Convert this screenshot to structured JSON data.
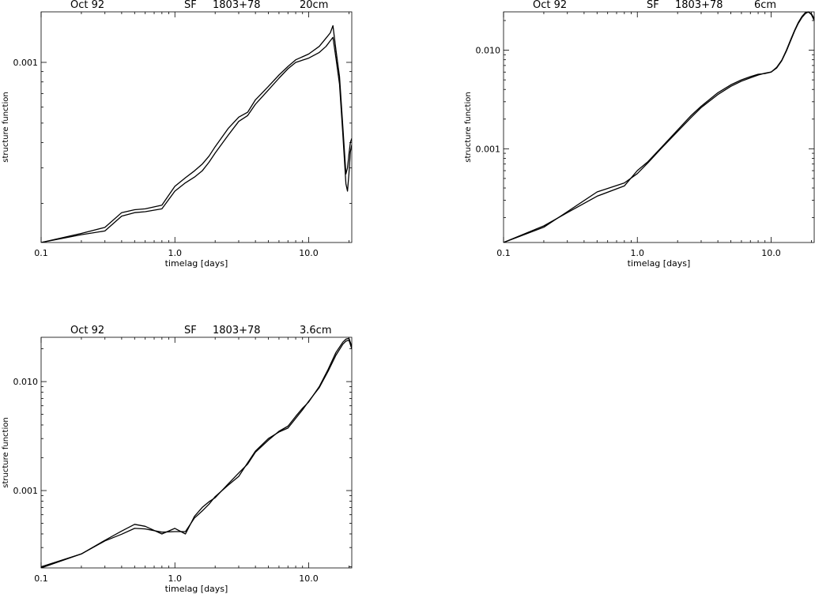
{
  "chart_data": [
    {
      "type": "line",
      "title_parts": [
        "Oct 92",
        "SF",
        "1803+78",
        "20cm"
      ],
      "xlabel": "timelag [days]",
      "ylabel": "structure function",
      "xscale": "log",
      "yscale": "log",
      "xlim": [
        0.1,
        21
      ],
      "ylim": [
        0.000128,
        0.00178
      ],
      "xticks": [
        {
          "value": 0.1,
          "label": "0.1"
        },
        {
          "value": 1.0,
          "label": "1.0"
        },
        {
          "value": 10.0,
          "label": "10.0"
        }
      ],
      "yticks": [
        {
          "value": 0.001,
          "label": "0.001"
        }
      ],
      "series": [
        {
          "x": [
            0.1,
            0.2,
            0.3,
            0.4,
            0.5,
            0.6,
            0.8,
            1.0,
            1.2,
            1.4,
            1.6,
            1.8,
            2.0,
            2.5,
            3.0,
            3.5,
            4.0,
            5.0,
            6.0,
            7.0,
            8.0,
            10.0,
            12.0,
            13.5,
            14.5,
            15.2,
            16.0,
            17.0,
            18.0,
            19.0,
            19.5,
            20.0,
            20.5,
            21.0
          ],
          "y": [
            0.000128,
            0.000142,
            0.000152,
            0.00018,
            0.000186,
            0.000188,
            0.000196,
            0.000243,
            0.000268,
            0.00029,
            0.000313,
            0.000343,
            0.000382,
            0.00047,
            0.000535,
            0.000566,
            0.000652,
            0.00076,
            0.000865,
            0.000955,
            0.00103,
            0.0011,
            0.0012,
            0.00132,
            0.0014,
            0.00152,
            0.00115,
            0.00085,
            0.00048,
            0.00028,
            0.0003,
            0.00035,
            0.0004,
            0.00042
          ]
        },
        {
          "x": [
            0.1,
            0.2,
            0.3,
            0.4,
            0.5,
            0.6,
            0.8,
            1.0,
            1.2,
            1.4,
            1.6,
            1.8,
            2.0,
            2.5,
            3.0,
            3.5,
            4.0,
            5.0,
            6.0,
            7.0,
            8.0,
            10.0,
            12.0,
            13.5,
            14.5,
            15.2,
            16.0,
            17.0,
            18.0,
            19.0,
            19.5,
            20.0,
            20.5,
            21.0
          ],
          "y": [
            0.000128,
            0.00014,
            0.000146,
            0.000173,
            0.00018,
            0.000182,
            0.000188,
            0.00023,
            0.000253,
            0.00027,
            0.00029,
            0.00032,
            0.000355,
            0.000435,
            0.00051,
            0.000545,
            0.00062,
            0.00073,
            0.000835,
            0.00093,
            0.001,
            0.00105,
            0.00112,
            0.0012,
            0.00128,
            0.00133,
            0.00105,
            0.00078,
            0.00044,
            0.00025,
            0.00023,
            0.00028,
            0.00036,
            0.00039
          ]
        }
      ]
    },
    {
      "type": "line",
      "title_parts": [
        "Oct 92",
        "SF",
        "1803+78",
        "6cm"
      ],
      "xlabel": "timelag [days]",
      "ylabel": "structure function",
      "xscale": "log",
      "yscale": "log",
      "xlim": [
        0.1,
        21
      ],
      "ylim": [
        0.000112,
        0.0245
      ],
      "xticks": [
        {
          "value": 0.1,
          "label": "0.1"
        },
        {
          "value": 1.0,
          "label": "1.0"
        },
        {
          "value": 10.0,
          "label": "10.0"
        }
      ],
      "yticks": [
        {
          "value": 0.001,
          "label": "0.001"
        },
        {
          "value": 0.01,
          "label": "0.010"
        }
      ],
      "series": [
        {
          "x": [
            0.1,
            0.2,
            0.3,
            0.5,
            0.8,
            1.0,
            1.2,
            1.5,
            2.0,
            2.5,
            3.0,
            4.0,
            5.0,
            6.0,
            7.0,
            8.0,
            9.0,
            10.0,
            11.0,
            12.0,
            13.0,
            14.0,
            15.0,
            16.0,
            17.0,
            18.0,
            19.0,
            20.0,
            21.0
          ],
          "y": [
            0.000112,
            0.000165,
            0.000225,
            0.00033,
            0.00042,
            0.0006,
            0.00074,
            0.00102,
            0.00155,
            0.00215,
            0.0027,
            0.0037,
            0.00445,
            0.005,
            0.0054,
            0.0057,
            0.0058,
            0.006,
            0.0066,
            0.0078,
            0.0098,
            0.0125,
            0.0157,
            0.0188,
            0.0215,
            0.0235,
            0.0245,
            0.023,
            0.02
          ]
        },
        {
          "x": [
            0.1,
            0.2,
            0.3,
            0.5,
            0.8,
            1.0,
            1.2,
            1.5,
            2.0,
            2.5,
            3.0,
            4.0,
            5.0,
            6.0,
            7.0,
            8.0,
            9.0,
            10.0,
            11.0,
            12.0,
            13.0,
            14.0,
            15.0,
            16.0,
            17.0,
            18.0,
            19.0,
            20.0,
            21.0
          ],
          "y": [
            0.000112,
            0.00016,
            0.00023,
            0.000365,
            0.00045,
            0.00056,
            0.00072,
            0.001,
            0.0015,
            0.00205,
            0.00262,
            0.00355,
            0.0043,
            0.00485,
            0.00525,
            0.0056,
            0.00585,
            0.006,
            0.0067,
            0.0079,
            0.01,
            0.0128,
            0.016,
            0.0192,
            0.022,
            0.024,
            0.0243,
            0.0235,
            0.021
          ]
        }
      ]
    },
    {
      "type": "line",
      "title_parts": [
        "Oct 92",
        "SF",
        "1803+78",
        "3.6cm"
      ],
      "xlabel": "timelag [days]",
      "ylabel": "structure function",
      "xscale": "log",
      "yscale": "log",
      "xlim": [
        0.1,
        21
      ],
      "ylim": [
        0.000195,
        0.0255
      ],
      "xticks": [
        {
          "value": 0.1,
          "label": "0.1"
        },
        {
          "value": 1.0,
          "label": "1.0"
        },
        {
          "value": 10.0,
          "label": "10.0"
        }
      ],
      "yticks": [
        {
          "value": 0.001,
          "label": "0.001"
        },
        {
          "value": 0.01,
          "label": "0.010"
        }
      ],
      "series": [
        {
          "x": [
            0.1,
            0.2,
            0.3,
            0.4,
            0.5,
            0.6,
            0.8,
            1.0,
            1.2,
            1.4,
            1.6,
            1.8,
            2.0,
            2.5,
            3.0,
            3.5,
            4.0,
            5.0,
            6.0,
            7.0,
            8.0,
            9.0,
            10.0,
            12.0,
            14.0,
            16.0,
            18.0,
            19.0,
            20.0,
            21.0
          ],
          "y": [
            0.000195,
            0.000262,
            0.00035,
            0.000425,
            0.00049,
            0.00047,
            0.0004,
            0.00045,
            0.0004,
            0.00058,
            0.0007,
            0.00079,
            0.00086,
            0.00115,
            0.00145,
            0.00175,
            0.00225,
            0.0029,
            0.0035,
            0.0039,
            0.0048,
            0.0057,
            0.0065,
            0.009,
            0.013,
            0.0185,
            0.023,
            0.0245,
            0.025,
            0.021
          ]
        },
        {
          "x": [
            0.1,
            0.2,
            0.3,
            0.4,
            0.5,
            0.6,
            0.8,
            1.0,
            1.2,
            1.4,
            1.6,
            1.8,
            2.0,
            2.5,
            3.0,
            3.5,
            4.0,
            5.0,
            6.0,
            7.0,
            8.0,
            9.0,
            10.0,
            12.0,
            14.0,
            16.0,
            18.0,
            19.0,
            20.0,
            21.0
          ],
          "y": [
            0.0002,
            0.000262,
            0.000345,
            0.000398,
            0.00045,
            0.000445,
            0.000415,
            0.00042,
            0.00042,
            0.00056,
            0.00065,
            0.00075,
            0.00088,
            0.00112,
            0.00135,
            0.0018,
            0.0023,
            0.003,
            0.00345,
            0.00375,
            0.0046,
            0.0055,
            0.0066,
            0.0088,
            0.0125,
            0.0175,
            0.022,
            0.0235,
            0.024,
            0.02
          ]
        }
      ]
    }
  ]
}
